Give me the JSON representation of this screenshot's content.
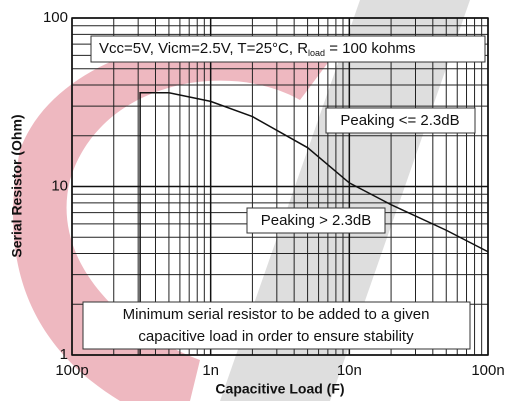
{
  "chart_data": {
    "type": "line",
    "x_label": "Capacitive Load (F)",
    "y_label": "Serial Resistor (Ohm)",
    "xscale": "log",
    "yscale": "log",
    "grid": true,
    "xlim": [
      1e-10,
      1e-07
    ],
    "xticks": [
      {
        "value": 1e-10,
        "label": "100p"
      },
      {
        "value": 1e-09,
        "label": "1n"
      },
      {
        "value": 1e-08,
        "label": "10n"
      },
      {
        "value": 1e-07,
        "label": "100n"
      }
    ],
    "xminor_ticks": [
      2e-10,
      3e-10,
      4e-10,
      5e-10,
      6e-10,
      7e-10,
      8e-10,
      9e-10,
      2e-09,
      3e-09,
      4e-09,
      5e-09,
      6e-09,
      7e-09,
      8e-09,
      9e-09,
      2e-08,
      3e-08,
      4e-08,
      5e-08,
      6e-08,
      7e-08,
      8e-08,
      9e-08
    ],
    "ylim": [
      1,
      100
    ],
    "yticks": [
      1,
      10,
      100
    ],
    "yminor_ticks": [
      2,
      3,
      4,
      5,
      6,
      7,
      8,
      9,
      20,
      30,
      40,
      50,
      60,
      70,
      80,
      90
    ],
    "series": [
      {
        "color": "#111111",
        "x": [
          3.1e-10,
          3.1e-10,
          5e-10,
          1e-09,
          2e-09,
          5e-09,
          1e-08,
          2e-08,
          5e-08,
          1e-07
        ],
        "values": [
          1,
          36,
          36,
          32,
          26,
          17,
          10.5,
          7.8,
          5.5,
          4.1
        ]
      }
    ],
    "annotations": [
      {
        "parts": [
          "Vcc=5V, Vicm=2.5V, T=25°C, R",
          "load",
          " = 100 kohms"
        ]
      },
      {
        "text": "Peaking <= 2.3dB"
      },
      {
        "text": "Peaking > 2.3dB"
      },
      {
        "lines": [
          "Minimum serial resistor to be added to a given",
          "capacitive load in order to ensure stability"
        ]
      }
    ]
  }
}
